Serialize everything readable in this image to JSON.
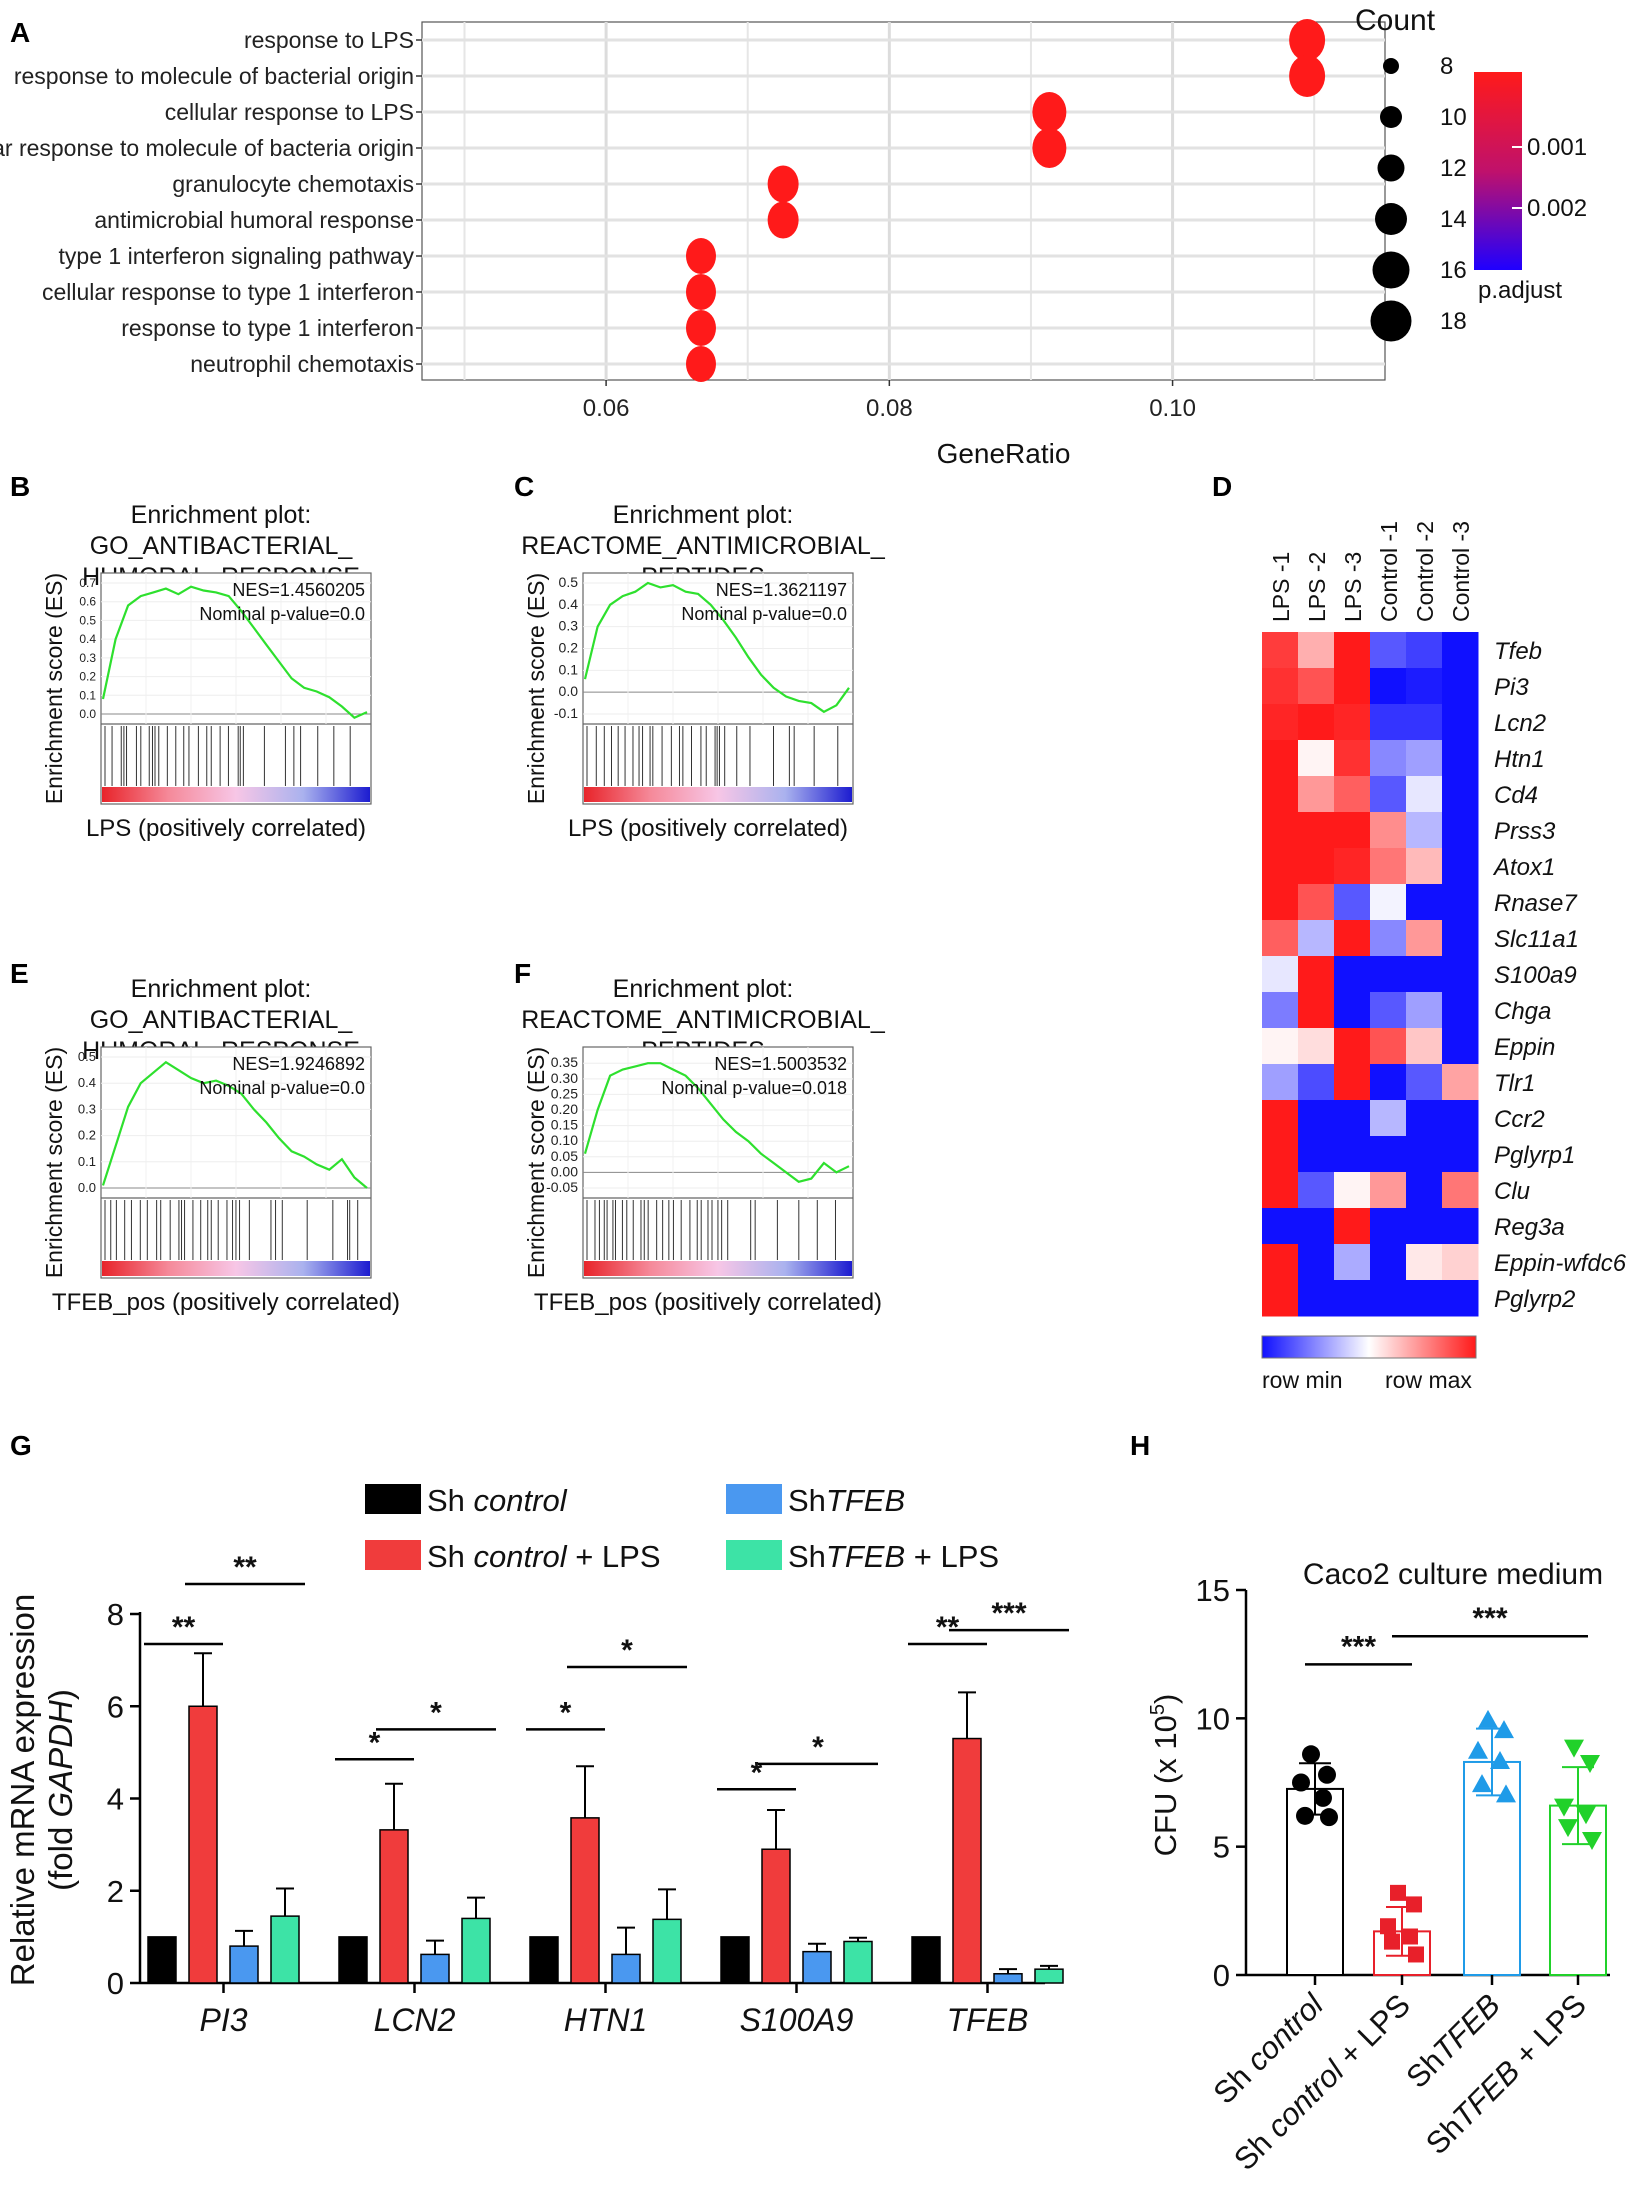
{
  "panel_letters": {
    "A": "A",
    "B": "B",
    "C": "C",
    "D": "D",
    "E": "E",
    "F": "F",
    "G": "G",
    "H": "H"
  },
  "chart_data": [
    {
      "id": "A",
      "type": "scatter",
      "subtype": "dotplot",
      "xlabel": "GeneRatio",
      "xticks": [
        "0.06",
        "0.08",
        "0.10"
      ],
      "xtick_values": [
        0.06,
        0.08,
        0.1
      ],
      "xlim": [
        0.047,
        0.115
      ],
      "categories": [
        "response to LPS",
        "response to molecule of bacterial origin",
        "cellular response to LPS",
        "cellular response to molecule of bacteria origin",
        "granulocyte chemotaxis",
        "antimicrobial humoral response",
        "type 1 interferon signaling pathway",
        "cellular response to type 1 interferon",
        "response to type 1 interferon",
        "neutrophil chemotaxis"
      ],
      "gene_ratio": [
        0.1095,
        0.1095,
        0.0913,
        0.0913,
        0.0725,
        0.0725,
        0.0667,
        0.0667,
        0.0667,
        0.0667
      ],
      "count_legend_title": "Count",
      "count_legend": [
        "8",
        "10",
        "12",
        "14",
        "16",
        "18"
      ],
      "color_legend_title": "p.adjust",
      "color_legend_ticks": [
        "0.001",
        "0.002"
      ],
      "colors": {
        "high": "#ff1a1a",
        "low": "#1f00ff",
        "dot": "#ff1a1a"
      }
    },
    {
      "id": "B",
      "type": "line",
      "title": [
        "Enrichment plot:",
        "GO_ANTIBACTERIAL_",
        "HUMORAL_RESPONSE"
      ],
      "ylabel": "Enrichment score (ES)",
      "xlabel": "LPS (positively correlated)",
      "yticks": [
        "0.7",
        "0.6",
        "0.5",
        "0.4",
        "0.3",
        "0.2",
        "0.1",
        "0.0"
      ],
      "ylim": [
        0.0,
        0.7
      ],
      "nes": "NES=1.4560205",
      "pval": "Nominal p-value=0.0",
      "es": [
        0.08,
        0.4,
        0.58,
        0.63,
        0.65,
        0.67,
        0.64,
        0.68,
        0.66,
        0.65,
        0.63,
        0.55,
        0.46,
        0.37,
        0.28,
        0.19,
        0.14,
        0.12,
        0.09,
        0.04,
        -0.02,
        0.01
      ]
    },
    {
      "id": "C",
      "type": "line",
      "title": [
        "Enrichment plot:",
        "REACTOME_ANTIMICROBIAL_",
        "PEPTIDES"
      ],
      "ylabel": "Enrichment score (ES)",
      "xlabel": "LPS (positively correlated)",
      "yticks": [
        "0.5",
        "0.4",
        "0.3",
        "0.2",
        "0.1",
        "0.0",
        "-0.1"
      ],
      "ylim": [
        -0.1,
        0.5
      ],
      "nes": "NES=1.3621197",
      "pval": "Nominal p-value=0.0",
      "es": [
        0.06,
        0.3,
        0.4,
        0.44,
        0.46,
        0.5,
        0.48,
        0.49,
        0.46,
        0.45,
        0.4,
        0.33,
        0.25,
        0.16,
        0.08,
        0.02,
        -0.02,
        -0.04,
        -0.05,
        -0.09,
        -0.06,
        0.02
      ]
    },
    {
      "id": "E",
      "type": "line",
      "title": [
        "Enrichment plot:",
        "GO_ANTIBACTERIAL_",
        "HUMORAL_RESPONSE"
      ],
      "ylabel": "Enrichment score (ES)",
      "xlabel": "TFEB_pos (positively correlated)",
      "yticks": [
        "0.5",
        "0.4",
        "0.3",
        "0.2",
        "0.1",
        "0.0"
      ],
      "ylim": [
        0.0,
        0.5
      ],
      "nes": "NES=1.9246892",
      "pval": "Nominal p-value=0.0",
      "es": [
        0.01,
        0.16,
        0.31,
        0.4,
        0.44,
        0.48,
        0.45,
        0.42,
        0.4,
        0.41,
        0.39,
        0.36,
        0.3,
        0.25,
        0.19,
        0.14,
        0.12,
        0.09,
        0.07,
        0.11,
        0.04,
        0.0
      ]
    },
    {
      "id": "F",
      "type": "line",
      "title": [
        "Enrichment plot:",
        "REACTOME_ANTIMICROBIAL_",
        "PEPTIDES"
      ],
      "ylabel": "Enrichment score (ES)",
      "xlabel": "TFEB_pos (positively correlated)",
      "yticks": [
        "0.35",
        "0.30",
        "0.25",
        "0.20",
        "0.15",
        "0.10",
        "0.05",
        "0.00",
        "-0.05"
      ],
      "ylim": [
        -0.05,
        0.37
      ],
      "nes": "NES=1.5003532",
      "pval": "Nominal p-value=0.018",
      "es": [
        0.06,
        0.2,
        0.31,
        0.33,
        0.34,
        0.35,
        0.35,
        0.33,
        0.31,
        0.27,
        0.22,
        0.17,
        0.13,
        0.1,
        0.06,
        0.03,
        0.0,
        -0.03,
        -0.02,
        0.03,
        0.0,
        0.02
      ]
    },
    {
      "id": "D",
      "type": "heatmap",
      "columns": [
        "LPS -1",
        "LPS -2",
        "LPS -3",
        "Control -1",
        "Control -2",
        "Control -3"
      ],
      "rows": [
        "Tfeb",
        "Pi3",
        "Lcn2",
        "Htn1",
        "Cd4",
        "Prss3",
        "Atox1",
        "Rnase7",
        "Slc11a1",
        "S100a9",
        "Chga",
        "Eppin",
        "Tlr1",
        "Ccr2",
        "Pglyrp1",
        "Clu",
        "Reg3a",
        "Eppin-wfdc6",
        "Pglyrp2"
      ],
      "values": [
        [
          0.85,
          0.35,
          1.0,
          -0.7,
          -0.8,
          -1.0
        ],
        [
          0.9,
          0.75,
          1.0,
          -1.0,
          -0.95,
          -1.0
        ],
        [
          0.95,
          1.0,
          0.95,
          -0.85,
          -0.85,
          -1.0
        ],
        [
          1.0,
          0.05,
          0.9,
          -0.5,
          -0.4,
          -1.0
        ],
        [
          1.0,
          0.45,
          0.7,
          -0.7,
          -0.1,
          -1.0
        ],
        [
          1.0,
          1.0,
          1.0,
          0.5,
          -0.3,
          -1.0
        ],
        [
          1.0,
          1.0,
          0.95,
          0.6,
          0.3,
          -1.0
        ],
        [
          1.0,
          0.75,
          -0.7,
          -0.05,
          -1.0,
          -1.0
        ],
        [
          0.7,
          -0.3,
          1.0,
          -0.5,
          0.45,
          -1.0
        ],
        [
          -0.1,
          1.0,
          -1.0,
          -1.0,
          -1.0,
          -1.0
        ],
        [
          -0.55,
          1.0,
          -1.0,
          -0.7,
          -0.4,
          -1.0
        ],
        [
          0.05,
          0.15,
          1.0,
          0.75,
          0.25,
          -1.0
        ],
        [
          -0.4,
          -0.75,
          1.0,
          -1.0,
          -0.7,
          0.4
        ],
        [
          1.0,
          -1.0,
          -1.0,
          -0.3,
          -1.0,
          -1.0
        ],
        [
          1.0,
          -1.0,
          -1.0,
          -1.0,
          -1.0,
          -1.0
        ],
        [
          1.0,
          -0.7,
          0.05,
          0.45,
          -1.0,
          0.6
        ],
        [
          -1.0,
          -1.0,
          1.0,
          -1.0,
          -1.0,
          -1.0
        ],
        [
          1.0,
          -1.0,
          -0.35,
          -1.0,
          0.1,
          0.2
        ],
        [
          1.0,
          -1.0,
          -1.0,
          -1.0,
          -1.0,
          -1.0
        ]
      ],
      "legend": {
        "min": "row min",
        "max": "row max"
      },
      "colors": {
        "min": "#1010ff",
        "mid": "#ffffff",
        "max": "#ff1a1a"
      }
    },
    {
      "id": "G",
      "type": "bar",
      "ylabel_line1": "Relative mRNA expression",
      "ylabel_line2_prefix": "(fold ",
      "ylabel_line2_italic": "GAPDH",
      "ylabel_line2_suffix": ")",
      "ylim": [
        0,
        8
      ],
      "yticks": [
        "0",
        "2",
        "4",
        "6",
        "8"
      ],
      "ytick_values": [
        0,
        2,
        4,
        6,
        8
      ],
      "categories": [
        "PI3",
        "LCN2",
        "HTN1",
        "S100A9",
        "TFEB"
      ],
      "series": [
        {
          "name": "Sh control",
          "color": "#000000",
          "values": [
            1,
            1,
            1,
            1,
            1
          ],
          "errors": [
            0,
            0,
            0,
            0,
            0
          ]
        },
        {
          "name": "Sh control + LPS",
          "color": "#f03c3c",
          "values": [
            6.0,
            3.32,
            3.58,
            2.9,
            5.3
          ],
          "errors": [
            1.15,
            1.0,
            1.12,
            0.85,
            1.0
          ]
        },
        {
          "name": "ShTFEB",
          "color": "#4a98f0",
          "values": [
            0.8,
            0.62,
            0.62,
            0.68,
            0.2
          ],
          "errors": [
            0.33,
            0.3,
            0.58,
            0.17,
            0.1
          ]
        },
        {
          "name": "ShTFEB + LPS",
          "color": "#3de3a6",
          "values": [
            1.45,
            1.4,
            1.38,
            0.9,
            0.3
          ],
          "errors": [
            0.6,
            0.45,
            0.65,
            0.08,
            0.07
          ]
        }
      ],
      "legend_text": {
        "sh": "Sh ",
        "control_it": "control",
        "plus_lps": " + LPS",
        "tfeb_prefix": "Sh",
        "tfeb_it": "TFEB"
      },
      "significance": [
        {
          "cat": 0,
          "from": 0,
          "to": 1,
          "y": 7.35,
          "label": "**"
        },
        {
          "cat": 0,
          "from": 1,
          "to": 3,
          "y": 8.65,
          "label": "**"
        },
        {
          "cat": 1,
          "from": 0,
          "to": 1,
          "y": 4.85,
          "label": "*"
        },
        {
          "cat": 1,
          "from": 1,
          "to": 3,
          "y": 5.5,
          "label": "*"
        },
        {
          "cat": 2,
          "from": 0,
          "to": 1,
          "y": 5.5,
          "label": "*"
        },
        {
          "cat": 2,
          "from": 1,
          "to": 3,
          "y": 6.85,
          "label": "*"
        },
        {
          "cat": 3,
          "from": 0,
          "to": 1,
          "y": 4.2,
          "label": "*"
        },
        {
          "cat": 3,
          "from": 1,
          "to": 3,
          "y": 4.75,
          "label": "*"
        },
        {
          "cat": 4,
          "from": 0,
          "to": 1,
          "y": 7.35,
          "label": "**"
        },
        {
          "cat": 4,
          "from": 1,
          "to": 3,
          "y": 7.65,
          "label": "***"
        }
      ]
    },
    {
      "id": "H",
      "type": "bar",
      "subtype": "bar-with-points",
      "title": "Caco2 culture medium",
      "ylabel": "CFU (x 10",
      "ylabel_sup": "5",
      "ylabel_close": ")",
      "ylim": [
        0,
        15
      ],
      "yticks": [
        "0",
        "5",
        "10",
        "15"
      ],
      "ytick_values": [
        0,
        5,
        10,
        15
      ],
      "groups": [
        {
          "plain": "Sh ",
          "italic": "control",
          "suffix": "",
          "color": "#000000",
          "mean": 7.25,
          "sd": 1.0,
          "points": [
            8.6,
            7.8,
            7.5,
            6.9,
            6.2,
            6.15
          ]
        },
        {
          "plain": "Sh ",
          "italic": "control",
          "suffix": " + LPS",
          "color": "#e8202a",
          "mean": 1.7,
          "sd": 0.95,
          "points": [
            3.2,
            2.75,
            1.9,
            1.5,
            1.3,
            0.8
          ]
        },
        {
          "plain": "Sh",
          "italic": "TFEB",
          "suffix": "",
          "color": "#1f9be8",
          "mean": 8.3,
          "sd": 1.3,
          "points": [
            9.9,
            9.5,
            8.7,
            8.3,
            7.4,
            7.0
          ]
        },
        {
          "plain": "Sh",
          "italic": "TFEB",
          "suffix": " + LPS",
          "color": "#21d12a",
          "mean": 6.6,
          "sd": 1.5,
          "points": [
            8.9,
            8.3,
            6.6,
            6.3,
            5.8,
            5.3
          ]
        }
      ],
      "significance": [
        {
          "from": 0,
          "to": 1,
          "y": 12.1,
          "label": "***"
        },
        {
          "from": 1,
          "to": 3,
          "y": 13.2,
          "label": "***"
        }
      ]
    }
  ]
}
